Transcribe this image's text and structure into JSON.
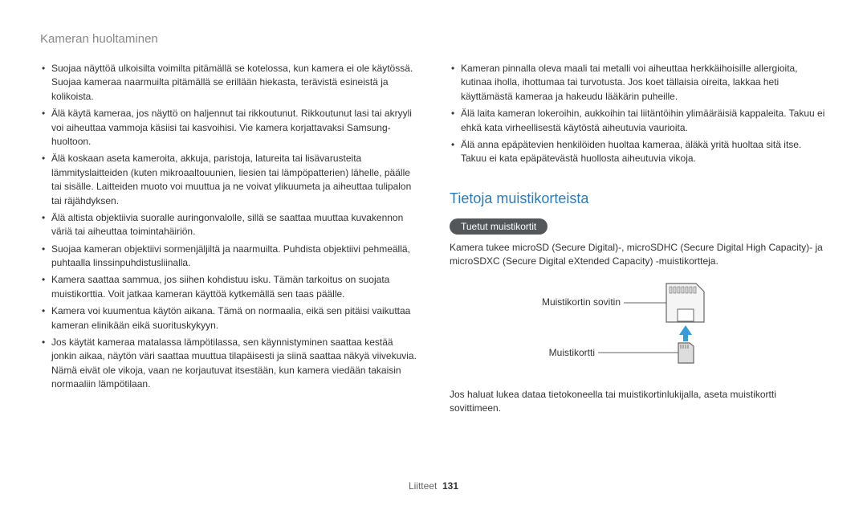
{
  "header": {
    "title": "Kameran huoltaminen"
  },
  "left_bullets": [
    "Suojaa näyttöä ulkoisilta voimilta pitämällä se kotelossa, kun kamera ei ole käytössä. Suojaa kameraa naarmuilta pitämällä se erillään hiekasta, terävistä esineistä ja kolikoista.",
    "Älä käytä kameraa, jos näyttö on haljennut tai rikkoutunut. Rikkoutunut lasi tai akryyli voi aiheuttaa vammoja käsiisi tai kasvoihisi. Vie kamera korjattavaksi Samsung-huoltoon.",
    "Älä koskaan aseta kameroita, akkuja, paristoja, latureita tai lisävarusteita lämmityslaitteiden (kuten mikroaaltouunien, liesien tai lämpöpatterien) lähelle, päälle tai sisälle. Laitteiden muoto voi muuttua ja ne voivat ylikuumeta ja aiheuttaa tulipalon tai räjähdyksen.",
    "Älä altista objektiivia suoralle auringonvalolle, sillä se saattaa muuttaa kuvakennon väriä tai aiheuttaa toimintahäiriön.",
    "Suojaa kameran objektiivi sormenjäljiltä ja naarmuilta. Puhdista objektiivi pehmeällä, puhtaalla linssinpuhdistusliinalla.",
    "Kamera saattaa sammua, jos siihen kohdistuu isku. Tämän tarkoitus on suojata muistikorttia. Voit jatkaa kameran käyttöä kytkemällä sen taas päälle.",
    "Kamera voi kuumentua käytön aikana. Tämä on normaalia, eikä sen pitäisi vaikuttaa kameran elinikään eikä suorituskykyyn.",
    "Jos käytät kameraa matalassa lämpötilassa, sen käynnistyminen saattaa kestää jonkin aikaa, näytön väri saattaa muuttua tilapäisesti ja siinä saattaa näkyä viivekuvia. Nämä eivät ole vikoja, vaan ne korjautuvat itsestään, kun kamera viedään takaisin normaaliin lämpötilaan."
  ],
  "right_bullets": [
    "Kameran pinnalla oleva maali tai metalli voi aiheuttaa herkkäihoisille allergioita, kutinaa iholla, ihottumaa tai turvotusta. Jos koet tällaisia oireita, lakkaa heti käyttämästä kameraa ja hakeudu lääkärin puheille.",
    "Älä laita kameran lokeroihin, aukkoihin tai liitäntöihin ylimääräisiä kappaleita. Takuu ei ehkä kata virheellisestä käytöstä aiheutuvia vaurioita.",
    "Älä anna epäpätevien henkilöiden huoltaa kameraa, äläkä yritä huoltaa sitä itse. Takuu ei kata epäpätevästä huollosta aiheutuvia vikoja."
  ],
  "section": {
    "title": "Tietoja muistikorteista",
    "pill": "Tuetut muistikortit",
    "supported_text": "Kamera tukee microSD (Secure Digital)-, microSDHC (Secure Digital High Capacity)- ja microSDXC (Secure Digital eXtended Capacity) -muistikortteja.",
    "after_text": "Jos haluat lukea dataa tietokoneella tai muistikortinlukijalla, aseta muistikortti sovittimeen."
  },
  "diagram": {
    "adapter_label": "Muistikortin sovitin",
    "card_label": "Muistikortti",
    "colors": {
      "outline": "#666666",
      "fill_light": "#f5f5f5",
      "fill_mid": "#dddddd",
      "arrow": "#3a9bd6",
      "leader": "#333333"
    }
  },
  "footer": {
    "section": "Liitteet",
    "page": "131"
  }
}
